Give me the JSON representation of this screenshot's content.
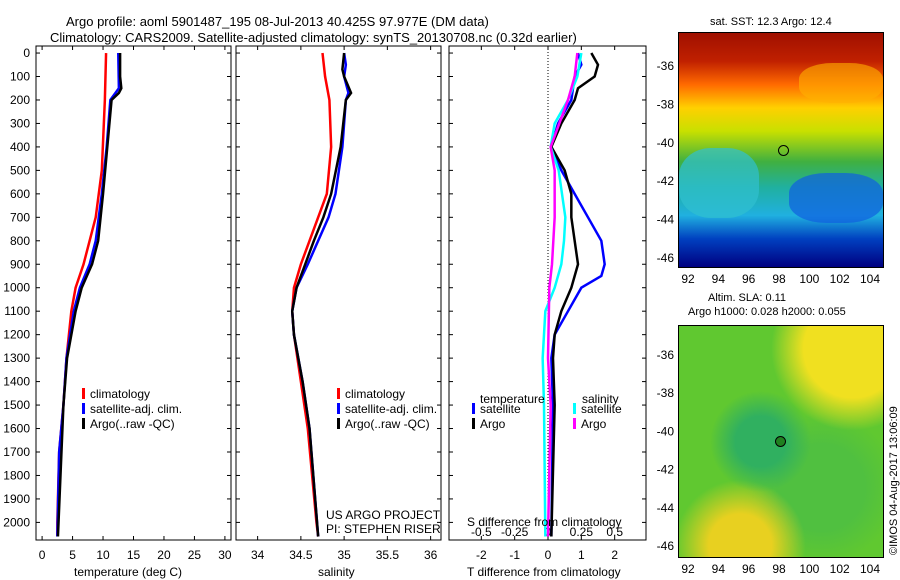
{
  "title": {
    "line1": "Argo profile: aoml 5901487_195 08-Jul-2013 40.425S 97.977E (DM data)",
    "line2": "Climatology: CARS2009. Satellite-adjusted climatology: synTS_20130708.nc (0.32d earlier)"
  },
  "colors": {
    "climatology": "#ff0000",
    "satellite": "#0000ff",
    "argo": "#000000",
    "s_satellite": "#00ffff",
    "s_argo": "#ff00ff"
  },
  "credit": {
    "project": "US ARGO PROJECT",
    "pi": "PI: STEPHEN RISER"
  },
  "timestamp": "©IMOS 04-Aug-2017 13:06:09",
  "chart_data": [
    {
      "type": "line",
      "xlabel": "temperature (deg C)",
      "ylabel": "",
      "xlim": [
        -1,
        31
      ],
      "ylim": [
        2075,
        -30
      ],
      "xticks": [
        0,
        5,
        10,
        15,
        20,
        25,
        30
      ],
      "yticks": [
        0,
        100,
        200,
        300,
        400,
        500,
        600,
        700,
        800,
        900,
        1000,
        1100,
        1200,
        1300,
        1400,
        1500,
        1600,
        1700,
        1800,
        1900,
        2000
      ],
      "legend": [
        "climatology",
        "satellite-adj. clim.",
        "Argo(..raw -QC)"
      ],
      "series": [
        {
          "name": "climatology",
          "color": "#ff0000",
          "depth": [
            0,
            200,
            500,
            700,
            900,
            1000,
            1100,
            1300,
            1500,
            1700,
            2000,
            2060
          ],
          "values": [
            10.5,
            10.3,
            9.8,
            8.8,
            6.8,
            5.5,
            4.8,
            4.0,
            3.5,
            2.8,
            2.5,
            2.5
          ]
        },
        {
          "name": "satellite-adj. clim.",
          "color": "#0000ff",
          "depth": [
            0,
            150,
            200,
            400,
            600,
            800,
            900,
            1000,
            1100,
            1300,
            1500,
            1700,
            2060
          ],
          "values": [
            12.5,
            12.6,
            11.2,
            10.6,
            9.8,
            8.8,
            7.8,
            6.2,
            5.2,
            4.0,
            3.5,
            2.8,
            2.5
          ]
        },
        {
          "name": "Argo(..raw -QC)",
          "color": "#000000",
          "depth": [
            0,
            100,
            150,
            170,
            200,
            400,
            600,
            800,
            900,
            1000,
            1100,
            1300,
            1500,
            2060
          ],
          "values": [
            12.8,
            12.8,
            13.0,
            12.6,
            11.4,
            10.7,
            10.0,
            9.2,
            8.2,
            6.5,
            5.5,
            4.1,
            3.5,
            2.6
          ]
        }
      ]
    },
    {
      "type": "line",
      "xlabel": "salinity",
      "xlim": [
        33.75,
        36.12
      ],
      "ylim": [
        2075,
        -30
      ],
      "xticks": [
        34,
        34.5,
        35,
        35.5,
        36
      ],
      "legend": [
        "climatology",
        "satellite-adj. clim.",
        "Argo(..raw -QC)"
      ],
      "series": [
        {
          "name": "climatology",
          "color": "#ff0000",
          "depth": [
            0,
            100,
            200,
            400,
            600,
            700,
            800,
            900,
            1000,
            1100,
            1200,
            1400,
            1600,
            1800,
            2000,
            2060
          ],
          "values": [
            34.75,
            34.78,
            34.83,
            34.85,
            34.8,
            34.7,
            34.6,
            34.5,
            34.42,
            34.4,
            34.42,
            34.5,
            34.58,
            34.63,
            34.68,
            34.7
          ]
        },
        {
          "name": "satellite-adj. clim.",
          "color": "#0000ff",
          "depth": [
            0,
            50,
            100,
            170,
            200,
            400,
            600,
            700,
            800,
            900,
            1000,
            1100,
            1200,
            1400,
            1600,
            2060
          ],
          "values": [
            35.0,
            35.02,
            35.0,
            35.05,
            35.02,
            34.98,
            34.9,
            34.82,
            34.7,
            34.58,
            34.45,
            34.4,
            34.42,
            34.52,
            34.6,
            34.7
          ]
        },
        {
          "name": "Argo(..raw -QC)",
          "color": "#000000",
          "depth": [
            0,
            70,
            100,
            170,
            200,
            400,
            600,
            700,
            800,
            900,
            1000,
            1100,
            1200,
            1400,
            1600,
            2060
          ],
          "values": [
            35.0,
            34.98,
            35.0,
            35.08,
            35.02,
            34.96,
            34.85,
            34.76,
            34.65,
            34.55,
            34.45,
            34.4,
            34.42,
            34.52,
            34.6,
            34.7
          ]
        }
      ]
    },
    {
      "type": "line",
      "xlabel": "T difference from climatology",
      "x2label": "S difference from climatology",
      "xlim": [
        -2.97,
        2.94
      ],
      "ylim": [
        2075,
        -30
      ],
      "xticks": [
        -2,
        -1,
        0,
        1,
        2
      ],
      "x2ticks": [
        "-0.5",
        "-0.25",
        "0",
        "0.25",
        "0.5"
      ],
      "legend_titles": [
        "temperature",
        "salinity"
      ],
      "legend": [
        "satellite",
        "Argo",
        "satellite",
        "Argo"
      ],
      "series": [
        {
          "name": "temperature satellite",
          "color": "#0000ff",
          "scale": 1,
          "depth": [
            0,
            50,
            100,
            200,
            300,
            400,
            500,
            600,
            700,
            800,
            900,
            950,
            1000,
            1100,
            1200,
            1300,
            1500,
            2060
          ],
          "values": [
            0.9,
            1.0,
            0.8,
            0.7,
            0.3,
            0.1,
            0.4,
            0.8,
            1.2,
            1.6,
            1.7,
            1.6,
            1.0,
            0.6,
            0.2,
            0.1,
            0.15,
            0.1
          ]
        },
        {
          "name": "temperature Argo",
          "color": "#000000",
          "scale": 1,
          "depth": [
            0,
            50,
            100,
            150,
            200,
            300,
            400,
            500,
            600,
            700,
            800,
            900,
            1000,
            1100,
            1200,
            1300,
            1500,
            2060
          ],
          "values": [
            1.3,
            1.5,
            1.4,
            0.9,
            0.8,
            0.4,
            0.1,
            0.5,
            0.7,
            0.7,
            0.8,
            0.9,
            0.7,
            0.4,
            0.2,
            0.15,
            0.2,
            0.1
          ]
        },
        {
          "name": "salinity satellite",
          "color": "#00ffff",
          "scale": 4,
          "depth": [
            0,
            100,
            200,
            300,
            400,
            500,
            700,
            800,
            900,
            1000,
            1100,
            1300,
            1500,
            2060
          ],
          "values": [
            0.25,
            0.22,
            0.15,
            0.05,
            0.02,
            0.08,
            0.13,
            0.12,
            0.1,
            0.05,
            -0.02,
            -0.04,
            -0.03,
            -0.02
          ]
        },
        {
          "name": "salinity Argo",
          "color": "#ff00ff",
          "scale": 4,
          "depth": [
            0,
            100,
            200,
            400,
            500,
            700,
            900,
            1000,
            1300,
            1500,
            2060
          ],
          "values": [
            0.22,
            0.2,
            0.15,
            0.02,
            0.05,
            0.05,
            0.03,
            0.01,
            0,
            0.02,
            0
          ]
        }
      ]
    },
    {
      "type": "heatmap",
      "title": "sat. SST: 12.3 Argo: 12.4",
      "xticks": [
        92,
        94,
        96,
        98,
        100,
        102,
        104
      ],
      "yticks": [
        -36,
        -38,
        -40,
        -42,
        -44,
        -46
      ],
      "marker": [
        97.977,
        -40.425
      ]
    },
    {
      "type": "heatmap",
      "title1": "Altim. SLA: 0.11",
      "title2": "Argo h1000: 0.028 h2000: 0.055",
      "xticks": [
        92,
        94,
        96,
        98,
        100,
        102,
        104
      ],
      "yticks": [
        -36,
        -38,
        -40,
        -42,
        -44,
        -46
      ],
      "marker": [
        97.977,
        -40.425
      ]
    }
  ]
}
